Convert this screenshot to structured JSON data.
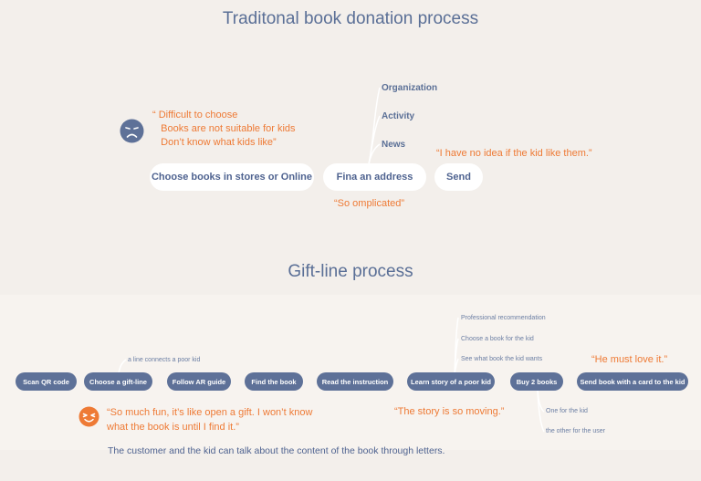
{
  "traditional": {
    "title": "Traditonal book donation process",
    "steps": [
      "Choose books in stores or Online",
      "Fina an address",
      "Send"
    ],
    "address_options": [
      "Organization",
      "Activity",
      "News"
    ],
    "pain_quote": "“ Difficult to choose\n   Books are not suitable for kids\n   Don’t know what kids like”",
    "complicated_quote": "“So omplicated”",
    "send_quote": "“I have no idea if the kid like them.”",
    "face_icon": "sad-face-icon"
  },
  "giftline": {
    "title": "Gift-line process",
    "steps": [
      "Scan QR code",
      "Choose a gift-line",
      "Follow AR guide",
      "Find the book",
      "Read the instruction",
      "Learn story of a poor kid",
      "Buy 2 books",
      "Send book with a card to the kid"
    ],
    "giftline_note": "a line connects a poor kid",
    "story_notes": [
      "Professional recommendation",
      "Choose a book for the kid",
      "See what book the kid wants"
    ],
    "buy_notes": [
      "One for the kid",
      "the other for the user"
    ],
    "fun_quote": "“So much fun, it’s like open a gift. I won’t know\nwhat the book is until I find it.”",
    "story_quote": "“The story is so moving.”",
    "love_quote": "“He must love it.”",
    "footer": "The customer and the kid can talk about the content of the book through letters.",
    "face_icon": "happy-face-icon"
  },
  "colors": {
    "background": "#f3efeb",
    "accent_blue": "#5e7198",
    "accent_orange": "#ee7a35"
  }
}
